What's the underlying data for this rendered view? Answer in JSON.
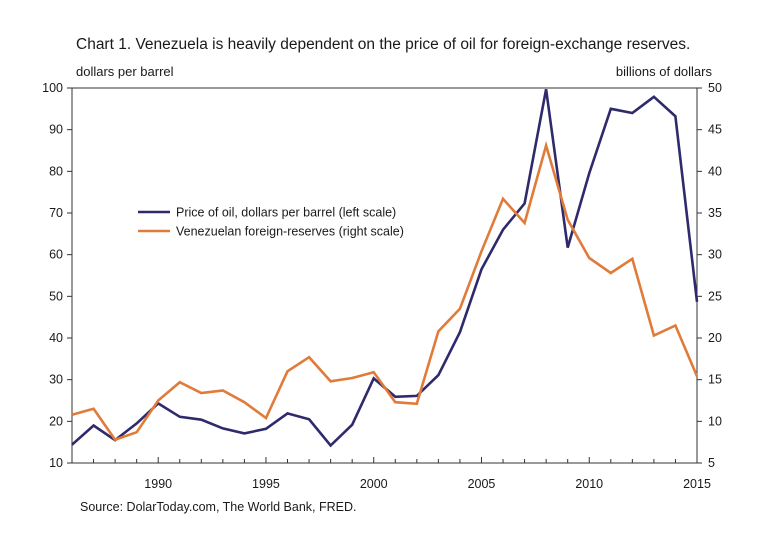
{
  "chart_data": {
    "type": "line",
    "title": "Chart 1. Venezuela is heavily dependent on the price of oil for foreign-exchange reserves.",
    "y_left_label": "dollars per barrel",
    "y_right_label": "billions of dollars",
    "source": "Source: DolarToday.com, The World Bank, FRED.",
    "x": [
      1986,
      1987,
      1988,
      1989,
      1990,
      1991,
      1992,
      1993,
      1994,
      1995,
      1996,
      1997,
      1998,
      1999,
      2000,
      2001,
      2002,
      2003,
      2004,
      2005,
      2006,
      2007,
      2008,
      2009,
      2010,
      2011,
      2012,
      2013,
      2014,
      2015
    ],
    "xlim": [
      1986,
      2015
    ],
    "x_ticks": [
      1990,
      1995,
      2000,
      2005,
      2010,
      2015
    ],
    "ylim_left": [
      10,
      100
    ],
    "y_left_ticks": [
      10,
      20,
      30,
      40,
      50,
      60,
      70,
      80,
      90,
      100
    ],
    "ylim_right": [
      5,
      50
    ],
    "y_right_ticks": [
      5,
      10,
      15,
      20,
      25,
      30,
      35,
      40,
      45,
      50
    ],
    "legend_position": "center-left",
    "series": [
      {
        "name": "Price of oil, dollars per barrel (left scale)",
        "axis": "left",
        "color": "#2e2a6b",
        "values": [
          14.4,
          19.0,
          15.5,
          19.5,
          24.3,
          21.1,
          20.4,
          18.3,
          17.1,
          18.2,
          21.9,
          20.5,
          14.2,
          19.2,
          30.3,
          25.9,
          26.1,
          31.1,
          41.4,
          56.5,
          66.0,
          72.3,
          99.7,
          61.7,
          79.5,
          95.0,
          94.0,
          97.9,
          93.2,
          48.7
        ]
      },
      {
        "name": "Venezuelan foreign-reserves (right scale)",
        "axis": "right",
        "color": "#e07b39",
        "values": [
          10.8,
          11.5,
          7.8,
          8.7,
          12.5,
          14.7,
          13.4,
          13.7,
          12.3,
          10.4,
          16.0,
          17.7,
          14.8,
          15.2,
          15.9,
          12.3,
          12.1,
          20.8,
          23.5,
          30.4,
          36.7,
          33.8,
          43.1,
          34.2,
          29.6,
          27.8,
          29.5,
          20.3,
          21.5,
          15.4
        ]
      }
    ]
  }
}
